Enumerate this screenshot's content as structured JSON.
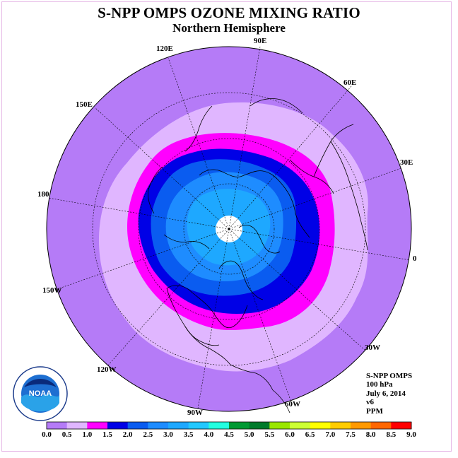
{
  "title": "S-NPP OMPS OZONE MIXING RATIO",
  "subtitle": "Northern Hemisphere",
  "longitude_labels": [
    "90E",
    "60E",
    "30E",
    "0",
    "30W",
    "60W",
    "90W",
    "120W",
    "150W",
    "180",
    "150E",
    "120E"
  ],
  "info": {
    "instrument": "S-NPP OMPS",
    "pressure": "100 hPa",
    "date": "July 6, 2014",
    "version": "v6",
    "units": "PPM"
  },
  "logo": {
    "text": "NOAA",
    "ring_text": "NATIONAL OCEANIC AND ATMOSPHERIC ADMINISTRATION · U.S. DEPARTMENT OF COMMERCE"
  },
  "colorbar": {
    "ticks": [
      "0.0",
      "0.5",
      "1.0",
      "1.5",
      "2.0",
      "2.5",
      "3.0",
      "3.5",
      "4.0",
      "4.5",
      "5.0",
      "5.5",
      "6.0",
      "6.5",
      "7.0",
      "7.5",
      "8.0",
      "8.5",
      "9.0"
    ],
    "colors": [
      "#b57bf7",
      "#e0b6ff",
      "#ff00ff",
      "#0000e6",
      "#0a5cf0",
      "#1e8cff",
      "#1ea8ff",
      "#22c8ff",
      "#22ffe0",
      "#009933",
      "#007a2a",
      "#99e600",
      "#ccff33",
      "#ffff00",
      "#ffcc00",
      "#ff9900",
      "#ff6600",
      "#ff0000",
      "#8b5a3c"
    ]
  },
  "contour_colors": {
    "outer": "#b57bf7",
    "band_0_5": "#e0b6ff",
    "band_1_0": "#ff00ff",
    "band_1_5": "#0000e6",
    "band_2_0": "#0a5cf0",
    "band_2_5": "#1e8cff",
    "band_3_0": "#1ea8ff",
    "pole_missing": "#ffffff"
  }
}
